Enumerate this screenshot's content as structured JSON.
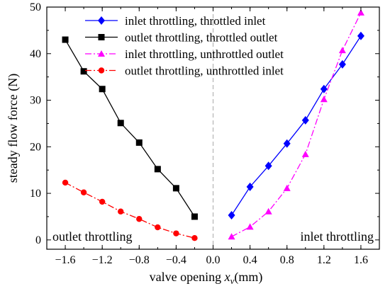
{
  "chart_data": {
    "type": "line",
    "title": "",
    "xlabel_main": "valve opening ",
    "xlabel_var": "x",
    "xlabel_sub": "v",
    "xlabel_unit": "(mm)",
    "ylabel": "steady flow force (N)",
    "xlim": [
      -1.8,
      1.8
    ],
    "ylim": [
      -2,
      50
    ],
    "xticks": [
      -1.6,
      -1.2,
      -0.8,
      -0.4,
      0.0,
      0.4,
      0.8,
      1.2,
      1.6
    ],
    "xtick_labels": [
      "−1.6",
      "−1.2",
      "−0.8",
      "−0.4",
      "0.0",
      "0.4",
      "0.8",
      "1.2",
      "1.6"
    ],
    "yticks": [
      0,
      10,
      20,
      30,
      40,
      50
    ],
    "ytick_labels": [
      "0",
      "10",
      "20",
      "30",
      "40",
      "50"
    ],
    "grid": false,
    "legend_position": "top",
    "series": [
      {
        "name": "inlet throttling, throttled inlet",
        "color": "#0000ff",
        "marker": "diamond",
        "line": "solid",
        "x": [
          0.2,
          0.4,
          0.6,
          0.8,
          1.0,
          1.2,
          1.4,
          1.6
        ],
        "y": [
          5.3,
          11.4,
          15.9,
          20.7,
          25.7,
          32.4,
          37.7,
          43.8
        ]
      },
      {
        "name": "outlet throttling, throttled outlet",
        "color": "#000000",
        "marker": "square",
        "line": "solid",
        "x": [
          -1.6,
          -1.4,
          -1.2,
          -1.0,
          -0.8,
          -0.6,
          -0.4,
          -0.2
        ],
        "y": [
          43.0,
          36.2,
          32.4,
          25.1,
          20.9,
          15.2,
          11.1,
          5.0
        ]
      },
      {
        "name": "inlet throttling, unthrottled outlet",
        "color": "#ff00ff",
        "marker": "triangle",
        "line": "dashdot",
        "x": [
          0.2,
          0.4,
          0.6,
          0.8,
          1.0,
          1.2,
          1.4,
          1.6
        ],
        "y": [
          0.7,
          2.8,
          6.1,
          11.1,
          18.4,
          30.2,
          40.7,
          48.8
        ]
      },
      {
        "name": "outlet throttling, unthrottled inlet",
        "color": "#ff0000",
        "marker": "circle",
        "line": "dashdot",
        "x": [
          -1.6,
          -1.4,
          -1.2,
          -1.0,
          -0.8,
          -0.6,
          -0.4,
          -0.2
        ],
        "y": [
          12.3,
          10.2,
          8.2,
          6.1,
          4.5,
          2.7,
          1.4,
          0.4
        ]
      }
    ],
    "annotations": [
      {
        "text": "outlet throttling",
        "side": "left"
      },
      {
        "text": "inlet throttling",
        "side": "right"
      }
    ],
    "reference_line": {
      "x": 0,
      "style": "dashed",
      "color": "#aaaaaa"
    }
  }
}
